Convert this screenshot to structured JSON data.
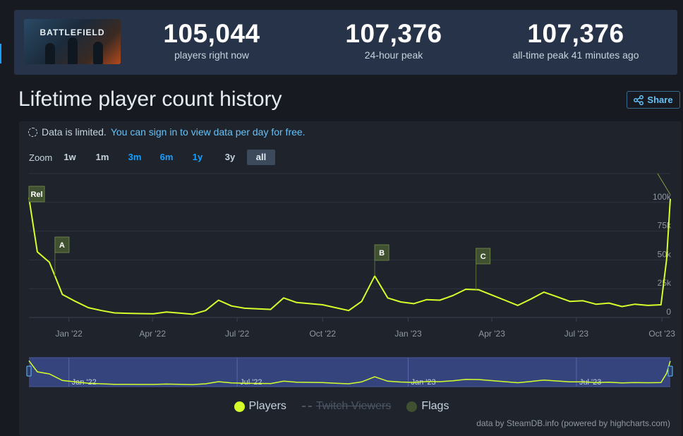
{
  "stats": {
    "game_logo_text": "BATTLEFIELD",
    "players_now": "105,044",
    "players_now_label": "players right now",
    "peak_24h": "107,376",
    "peak_24h_label": "24-hour peak",
    "all_time_peak": "107,376",
    "all_time_peak_label": "all-time peak 41 minutes ago"
  },
  "page_title": "Lifetime player count history",
  "share_label": "Share",
  "notice": {
    "text": "Data is limited.",
    "link": "You can sign in to view data per day for free."
  },
  "zoom": {
    "label": "Zoom",
    "options": [
      {
        "label": "1w",
        "state": "normal"
      },
      {
        "label": "1m",
        "state": "normal"
      },
      {
        "label": "3m",
        "state": "link"
      },
      {
        "label": "6m",
        "state": "link"
      },
      {
        "label": "1y",
        "state": "link"
      },
      {
        "label": "3y",
        "state": "normal"
      },
      {
        "label": "all",
        "state": "selected"
      }
    ]
  },
  "legend": {
    "players": "Players",
    "twitch": "Twitch Viewers",
    "flags": "Flags"
  },
  "credit": "data by SteamDB.info (powered by highcharts.com)",
  "colors": {
    "players_line": "#d4ff2a",
    "flag_fill": "#3f5130",
    "link": "#67c1f5",
    "navigator_bg": "#3a4a8c"
  },
  "chart_data": {
    "type": "line",
    "series": [
      {
        "name": "Players",
        "points": [
          [
            "2021-11-19",
            104000
          ],
          [
            "2021-11-28",
            57000
          ],
          [
            "2021-12-11",
            48000
          ],
          [
            "2021-12-25",
            20000
          ],
          [
            "2022-01-08",
            14000
          ],
          [
            "2022-01-22",
            8500
          ],
          [
            "2022-02-05",
            6000
          ],
          [
            "2022-02-19",
            4000
          ],
          [
            "2022-03-05",
            3600
          ],
          [
            "2022-03-19",
            3400
          ],
          [
            "2022-04-02",
            3200
          ],
          [
            "2022-04-16",
            4800
          ],
          [
            "2022-04-30",
            3800
          ],
          [
            "2022-05-14",
            2800
          ],
          [
            "2022-05-28",
            6000
          ],
          [
            "2022-06-11",
            15000
          ],
          [
            "2022-06-25",
            10000
          ],
          [
            "2022-07-09",
            8000
          ],
          [
            "2022-07-23",
            7500
          ],
          [
            "2022-08-06",
            7000
          ],
          [
            "2022-08-20",
            17000
          ],
          [
            "2022-09-03",
            13000
          ],
          [
            "2022-09-17",
            12000
          ],
          [
            "2022-10-01",
            11000
          ],
          [
            "2022-10-15",
            8500
          ],
          [
            "2022-10-29",
            6000
          ],
          [
            "2022-11-12",
            14000
          ],
          [
            "2022-11-26",
            36000
          ],
          [
            "2022-12-10",
            17000
          ],
          [
            "2022-12-24",
            13500
          ],
          [
            "2023-01-07",
            12000
          ],
          [
            "2023-01-21",
            15500
          ],
          [
            "2023-02-04",
            15000
          ],
          [
            "2023-02-18",
            19000
          ],
          [
            "2023-03-04",
            24500
          ],
          [
            "2023-03-18",
            24000
          ],
          [
            "2023-04-01",
            19500
          ],
          [
            "2023-04-15",
            15000
          ],
          [
            "2023-04-29",
            10500
          ],
          [
            "2023-05-13",
            16000
          ],
          [
            "2023-05-27",
            22000
          ],
          [
            "2023-06-10",
            18000
          ],
          [
            "2023-06-24",
            14000
          ],
          [
            "2023-07-08",
            14500
          ],
          [
            "2023-07-22",
            11500
          ],
          [
            "2023-08-05",
            12500
          ],
          [
            "2023-08-19",
            9500
          ],
          [
            "2023-09-02",
            11500
          ],
          [
            "2023-09-16",
            10500
          ],
          [
            "2023-09-30",
            11000
          ],
          [
            "2023-10-06",
            50000
          ],
          [
            "2023-10-10",
            103000
          ]
        ]
      }
    ],
    "flags": [
      {
        "label": "Rel",
        "date": "2021-11-19"
      },
      {
        "label": "A",
        "date": "2021-12-17"
      },
      {
        "label": "B",
        "date": "2022-11-26"
      },
      {
        "label": "C",
        "date": "2023-03-15"
      }
    ],
    "x_tick_labels": [
      "Jan '22",
      "Apr '22",
      "Jul '22",
      "Oct '22",
      "Jan '23",
      "Apr '23",
      "Jul '23",
      "Oct '23"
    ],
    "x_tick_dates": [
      "2022-01-01",
      "2022-04-01",
      "2022-07-01",
      "2022-10-01",
      "2023-01-01",
      "2023-04-01",
      "2023-07-01",
      "2023-10-01"
    ],
    "y_tick_labels": [
      "0",
      "25k",
      "50k",
      "75k",
      "100k"
    ],
    "y_tick_values": [
      0,
      25000,
      50000,
      75000,
      100000
    ],
    "xlim": [
      "2021-11-19",
      "2023-10-10"
    ],
    "ylim": [
      0,
      125000
    ],
    "navigator_labels": [
      "Jan '22",
      "Jul '22",
      "Jan '23",
      "Jul '23"
    ],
    "navigator_dates": [
      "2022-01-01",
      "2022-07-01",
      "2023-01-01",
      "2023-07-01"
    ],
    "grid": true
  }
}
